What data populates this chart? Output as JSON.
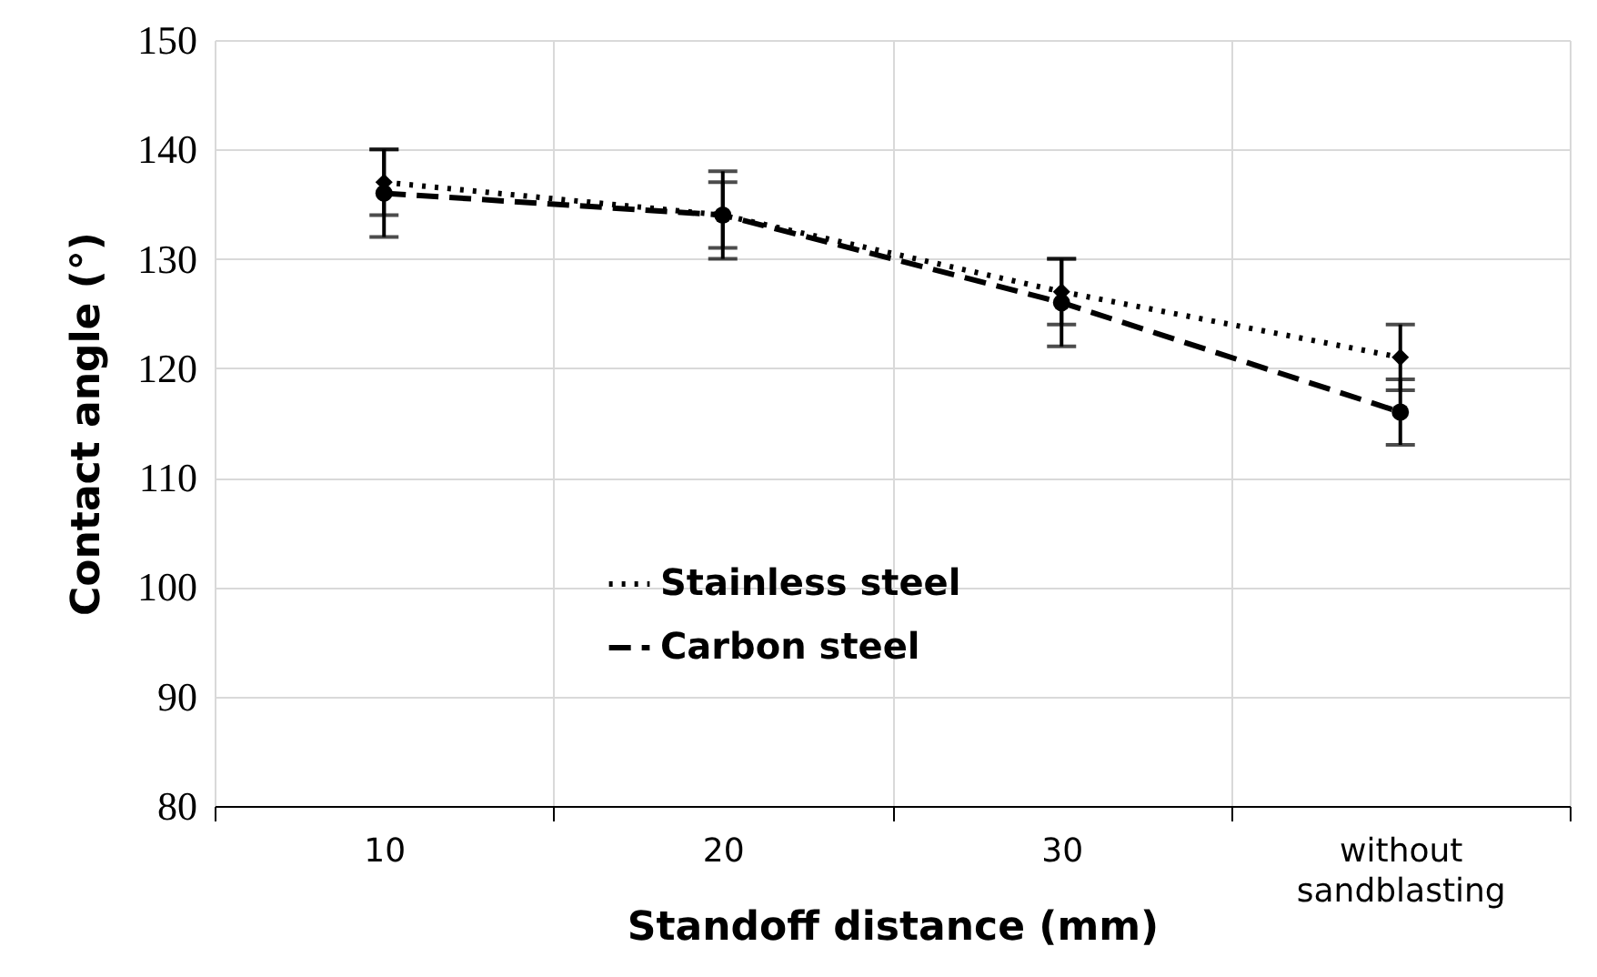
{
  "chart_data": {
    "type": "line",
    "xlabel": "Standoff distance (mm)",
    "ylabel": "Contact angle (°)",
    "categories": [
      "10",
      "20",
      "30",
      "without sandblasting"
    ],
    "series": [
      {
        "name": "Stainless steel",
        "color": "#000000",
        "values": [
          137,
          134,
          127,
          121
        ],
        "errors": [
          3,
          3,
          3,
          3
        ],
        "marker": "diamond",
        "line_style": "dotted"
      },
      {
        "name": "Carbon steel",
        "color": "#000000",
        "values": [
          136,
          134,
          126,
          116
        ],
        "errors": [
          4,
          4,
          4,
          3
        ],
        "marker": "circle",
        "line_style": "dashed"
      }
    ],
    "ylim": [
      80,
      150
    ],
    "yticks": [
      80,
      90,
      100,
      110,
      120,
      130,
      140,
      150
    ],
    "grid": true,
    "legend": "bottom"
  }
}
